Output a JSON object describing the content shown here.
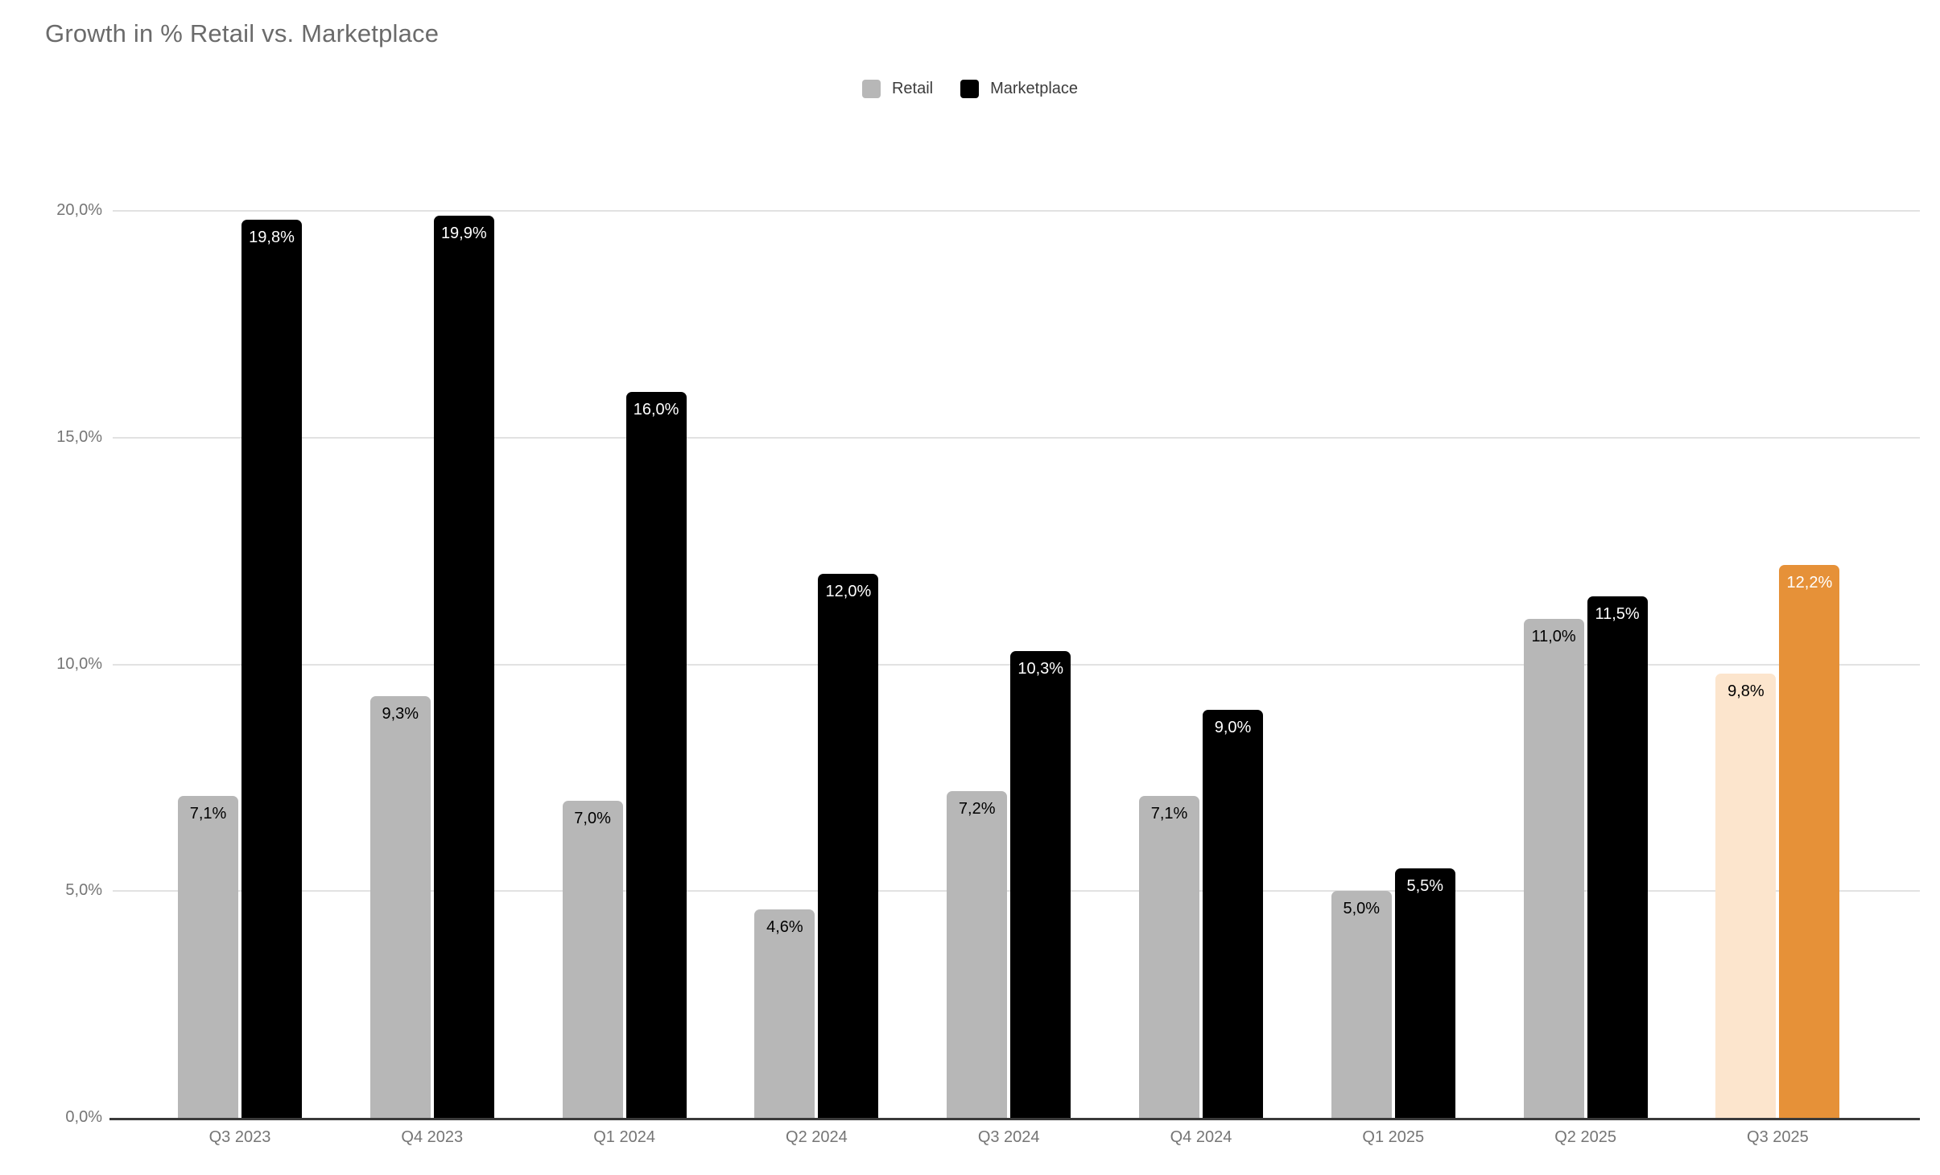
{
  "title": "Growth in % Retail vs. Marketplace",
  "legend": {
    "items": [
      {
        "label": "Retail",
        "color": "#b7b7b7"
      },
      {
        "label": "Marketplace",
        "color": "#000000"
      }
    ]
  },
  "chart_data": {
    "type": "bar",
    "title": "Growth in % Retail vs. Marketplace",
    "categories": [
      "Q3 2023",
      "Q4 2023",
      "Q1 2024",
      "Q2 2024",
      "Q3 2024",
      "Q4 2024",
      "Q1 2025",
      "Q2 2025",
      "Q3 2025"
    ],
    "series": [
      {
        "name": "Retail",
        "values": [
          7.1,
          9.3,
          7.0,
          4.6,
          7.2,
          7.1,
          5.0,
          11.0,
          9.8
        ],
        "labels": [
          "7,1%",
          "9,3%",
          "7,0%",
          "4,6%",
          "7,2%",
          "7,1%",
          "5,0%",
          "11,0%",
          "9,8%"
        ],
        "color": "#b7b7b7",
        "label_color": "#000000"
      },
      {
        "name": "Marketplace",
        "values": [
          19.8,
          19.9,
          16.0,
          12.0,
          10.3,
          9.0,
          5.5,
          11.5,
          12.2
        ],
        "labels": [
          "19,8%",
          "19,9%",
          "16,0%",
          "12,0%",
          "10,3%",
          "9,0%",
          "5,5%",
          "11,5%",
          "12,2%"
        ],
        "color": "#000000",
        "label_color": "#ffffff"
      }
    ],
    "highlight": {
      "category": "Q3 2025",
      "retail_color": "#fce5cd",
      "marketplace_color": "#e69138",
      "retail_label_color": "#000000",
      "marketplace_label_color": "#ffffff"
    },
    "y_ticks": [
      {
        "label": "0,0%",
        "value": 0
      },
      {
        "label": "5,0%",
        "value": 5
      },
      {
        "label": "10,0%",
        "value": 10
      },
      {
        "label": "15,0%",
        "value": 15
      },
      {
        "label": "20,0%",
        "value": 20
      }
    ],
    "ylim": [
      0,
      20
    ],
    "legend_position": "top-center",
    "grid": "horizontal",
    "axis_colors": {
      "gridline": "#e2e2e2",
      "baseline": "#3a3a3a",
      "tick_text": "#757575"
    }
  }
}
